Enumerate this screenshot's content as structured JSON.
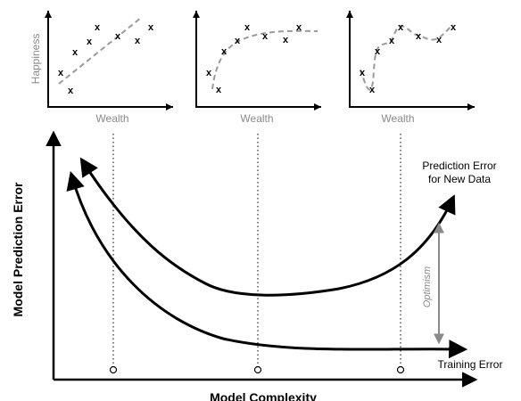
{
  "scatter_panels": [
    {
      "id": "underfit",
      "ylabel": "Happiness",
      "xlabel": "Wealth",
      "fit": "linear"
    },
    {
      "id": "goodfit",
      "ylabel": "",
      "xlabel": "Wealth",
      "fit": "smooth-curve"
    },
    {
      "id": "overfit",
      "ylabel": "",
      "xlabel": "Wealth",
      "fit": "wiggly-curve"
    }
  ],
  "point_marker": "x",
  "main_chart": {
    "ylabel": "Model Prediction Error",
    "xlabel": "Model Complexity",
    "curves": [
      {
        "name": "Prediction Error for New Data",
        "label_line1": "Prediction Error",
        "label_line2": "for New Data"
      },
      {
        "name": "Training Error",
        "label": "Training Error"
      }
    ],
    "gap_annotation": "Optimism"
  },
  "colors": {
    "axis": "#000000",
    "fit_line": "#9a9a9a",
    "muted_text": "#8a8a8a"
  }
}
